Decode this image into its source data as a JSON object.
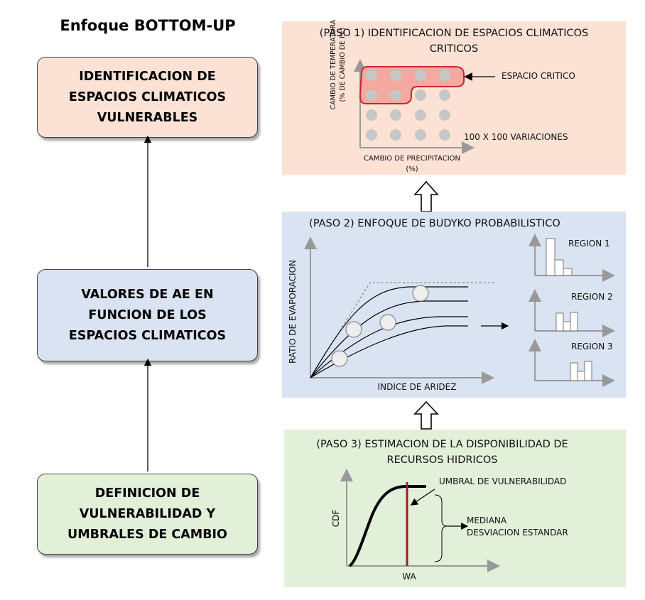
{
  "title": "Enfoque BOTTOM-UP",
  "left_boxes": [
    {
      "lines": [
        "IDENTIFICACION DE",
        "ESPACIOS CLIMATICOS",
        "VULNERABLES"
      ],
      "color": "#fbe2d5"
    },
    {
      "lines": [
        "VALORES DE AE EN",
        "FUNCION DE LOS",
        "ESPACIOS CLIMATICOS"
      ],
      "color": "#dae3f2"
    },
    {
      "lines": [
        "DEFINICION DE",
        "VULNERABILIDAD Y",
        "UMBRALES DE CAMBIO"
      ],
      "color": "#e2efd9"
    }
  ],
  "step1": {
    "title_lines": [
      "(PASO 1) IDENTIFICACION DE ESPACIOS CLIMATICOS",
      "CRITICOS"
    ],
    "color": "#fbe2d5",
    "ylabel_lines": [
      "CAMBIO DE TEMPERATURA",
      "(% DE CAMBIO DE PE)"
    ],
    "xlabel_lines": [
      "CAMBIO DE PRECIPITACION",
      "(%)"
    ],
    "critical_label": "ESPACIO CRITICO",
    "variations_label": "100 X 100 VARIACIONES"
  },
  "step2": {
    "title": "(PASO 2) ENFOQUE DE BUDYKO PROBABILISTICO",
    "color": "#dae3f2",
    "ylabel": "RATIO DE EVAPORACION",
    "xlabel": "INDICE DE ARIDEZ",
    "regions": [
      "REGION 1",
      "REGION 2",
      "REGION 3"
    ]
  },
  "step3": {
    "title_lines": [
      "(PASO 3) ESTIMACION DE LA DISPONIBILIDAD DE",
      "RECURSOS HIDRICOS"
    ],
    "color": "#e2efd9",
    "ylabel": "CDF",
    "xlabel": "WA",
    "threshold_label": "UMBRAL DE VULNERABILIDAD",
    "stats_lines": [
      "MEDIANA",
      "DESVIACION ESTANDAR"
    ],
    "threshold_color": "#a01c24"
  }
}
